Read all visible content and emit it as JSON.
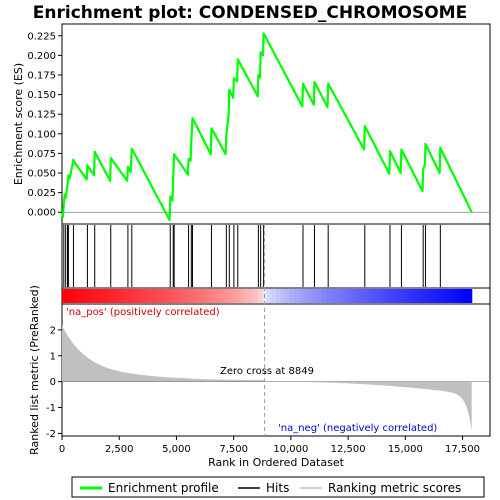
{
  "chart_data": {
    "type": "line",
    "title": "Enrichment plot: CONDENSED_CHROMOSOME",
    "top_panel": {
      "ylabel": "Enrichment score (ES)",
      "ylim": [
        -0.015,
        0.24
      ],
      "yticks": [
        0.0,
        0.025,
        0.05,
        0.075,
        0.1,
        0.125,
        0.15,
        0.175,
        0.2,
        0.225
      ],
      "ytick_labels": [
        "0.000",
        "0.025",
        "0.050",
        "0.075",
        "0.100",
        "0.125",
        "0.150",
        "0.175",
        "0.200",
        "0.225"
      ],
      "series": [
        {
          "name": "Enrichment profile",
          "color": "#00ff00",
          "x": [
            0,
            40,
            80,
            120,
            160,
            240,
            280,
            340,
            420,
            500,
            560,
            1080,
            1110,
            1400,
            1430,
            2100,
            2130,
            2850,
            2880,
            3000,
            3050,
            4700,
            4730,
            4830,
            4860,
            4900,
            5500,
            5530,
            5620,
            5650,
            5700,
            6500,
            6530,
            7150,
            7180,
            7280,
            7310,
            7480,
            7510,
            7650,
            7680,
            8550,
            8580,
            8650,
            8680,
            8780,
            8810,
            8849,
            10500,
            10530,
            11000,
            11030,
            11600,
            11630,
            13200,
            13230,
            14300,
            14330,
            14800,
            14830,
            15750,
            15780,
            15850,
            15880,
            16500,
            16530,
            17900
          ],
          "y": [
            0.0,
            -0.006,
            0.01,
            0.022,
            0.018,
            0.035,
            0.047,
            0.043,
            0.055,
            0.067,
            0.063,
            0.042,
            0.06,
            0.047,
            0.077,
            0.04,
            0.069,
            0.04,
            0.058,
            0.051,
            0.081,
            -0.01,
            0.02,
            0.015,
            0.045,
            0.074,
            0.048,
            0.068,
            0.066,
            0.09,
            0.12,
            0.074,
            0.107,
            0.074,
            0.098,
            0.124,
            0.156,
            0.146,
            0.171,
            0.167,
            0.195,
            0.148,
            0.175,
            0.172,
            0.204,
            0.2,
            0.228,
            0.226,
            0.135,
            0.164,
            0.137,
            0.166,
            0.134,
            0.164,
            0.08,
            0.11,
            0.049,
            0.078,
            0.05,
            0.08,
            0.027,
            0.055,
            0.06,
            0.087,
            0.05,
            0.082,
            0.0
          ]
        }
      ]
    },
    "hits": {
      "name": "Hits",
      "x": [
        80,
        160,
        240,
        280,
        500,
        1110,
        1430,
        2130,
        2880,
        3050,
        4730,
        4860,
        4900,
        5530,
        5650,
        5700,
        6530,
        7180,
        7310,
        7510,
        7680,
        8580,
        8680,
        8810,
        10530,
        11030,
        11630,
        13230,
        14330,
        14830,
        15780,
        15880,
        16530
      ]
    },
    "bottom_panel": {
      "ylabel": "Ranked list metric (PreRanked)",
      "ylim": [
        -2.1,
        3.0
      ],
      "yticks": [
        -2,
        -1,
        0,
        1,
        2
      ],
      "ytick_labels": [
        "-2",
        "-1",
        "0",
        "1",
        "2"
      ],
      "metric_name": "Ranking metric scores",
      "zero_cross_label": "Zero cross at 8849",
      "zero_cross": 8849,
      "pos_label": "'na_pos' (positively correlated)",
      "neg_label": "'na_neg' (negatively correlated)"
    },
    "x_axis": {
      "xlabel": "Rank in Ordered Dataset",
      "xlim": [
        0,
        18700
      ],
      "ticks": [
        0,
        2500,
        5000,
        7500,
        10000,
        12500,
        15000,
        17500
      ],
      "tick_labels": [
        "0",
        "2,500",
        "5,000",
        "7,500",
        "10,000",
        "12,500",
        "15,000",
        "17,500"
      ],
      "n_genes": 17900
    },
    "legend": {
      "position": "bottom",
      "entries": [
        "Enrichment profile",
        "Hits",
        "Ranking metric scores"
      ]
    },
    "colors": {
      "profile": "#00ff00",
      "metric_fill": "#c0c0c0",
      "pos_text": "#cc0000",
      "neg_text": "#0000cc",
      "heat_pos": "#ff0000",
      "heat_neg": "#0000ff"
    }
  }
}
